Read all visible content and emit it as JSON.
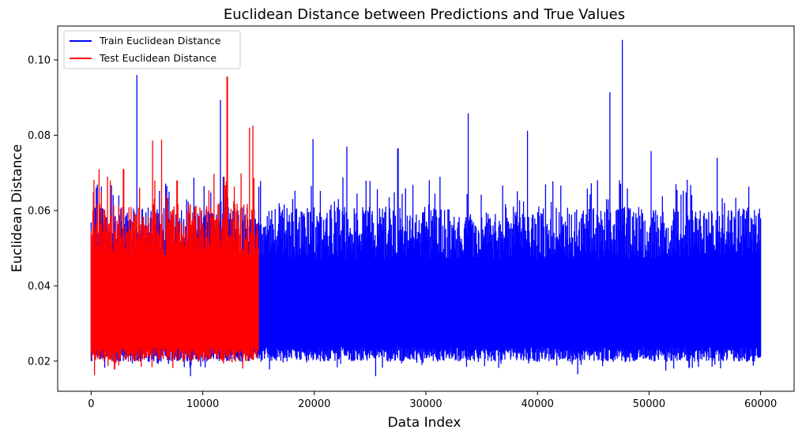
{
  "chart_data": {
    "type": "line",
    "title": "Euclidean Distance between Predictions and True Values",
    "xlabel": "Data Index",
    "ylabel": "Euclidean Distance",
    "xlim": [
      -3000,
      63000
    ],
    "ylim": [
      0.012,
      0.109
    ],
    "x_ticks": [
      0,
      10000,
      20000,
      30000,
      40000,
      50000,
      60000
    ],
    "x_tick_labels": [
      "0",
      "10000",
      "20000",
      "30000",
      "40000",
      "50000",
      "60000"
    ],
    "y_ticks": [
      0.02,
      0.04,
      0.06,
      0.08,
      0.1
    ],
    "y_tick_labels": [
      "0.02",
      "0.04",
      "0.06",
      "0.08",
      "0.10"
    ],
    "grid": false,
    "legend_position": "upper-left",
    "series": [
      {
        "name": "Train Euclidean Distance",
        "color": "#0000ff",
        "x_range": [
          0,
          60000
        ],
        "typical_band": [
          0.021,
          0.061
        ],
        "min": 0.0163,
        "max": 0.1053,
        "peaks": [
          {
            "x": 4100,
            "y": 0.096
          },
          {
            "x": 11600,
            "y": 0.0893
          },
          {
            "x": 12200,
            "y": 0.076
          },
          {
            "x": 19900,
            "y": 0.079
          },
          {
            "x": 22900,
            "y": 0.077
          },
          {
            "x": 27500,
            "y": 0.0765
          },
          {
            "x": 33800,
            "y": 0.0858
          },
          {
            "x": 39100,
            "y": 0.0812
          },
          {
            "x": 46500,
            "y": 0.0914
          },
          {
            "x": 47600,
            "y": 0.1053
          },
          {
            "x": 50200,
            "y": 0.0758
          },
          {
            "x": 56100,
            "y": 0.074
          }
        ],
        "troughs": [
          {
            "x": 8900,
            "y": 0.016
          },
          {
            "x": 25500,
            "y": 0.016
          },
          {
            "x": 43600,
            "y": 0.0165
          },
          {
            "x": 16000,
            "y": 0.0178
          },
          {
            "x": 51500,
            "y": 0.0175
          }
        ]
      },
      {
        "name": "Test Euclidean Distance",
        "color": "#ff0000",
        "x_range": [
          0,
          15000
        ],
        "typical_band": [
          0.021,
          0.062
        ],
        "min": 0.0163,
        "max": 0.0956,
        "peaks": [
          {
            "x": 700,
            "y": 0.071
          },
          {
            "x": 2900,
            "y": 0.071
          },
          {
            "x": 5500,
            "y": 0.0786
          },
          {
            "x": 6300,
            "y": 0.0788
          },
          {
            "x": 7700,
            "y": 0.068
          },
          {
            "x": 12200,
            "y": 0.0956
          },
          {
            "x": 14200,
            "y": 0.082
          },
          {
            "x": 14500,
            "y": 0.0826
          }
        ],
        "troughs": [
          {
            "x": 300,
            "y": 0.0163
          },
          {
            "x": 2100,
            "y": 0.0178
          },
          {
            "x": 4500,
            "y": 0.0185
          }
        ]
      }
    ]
  }
}
